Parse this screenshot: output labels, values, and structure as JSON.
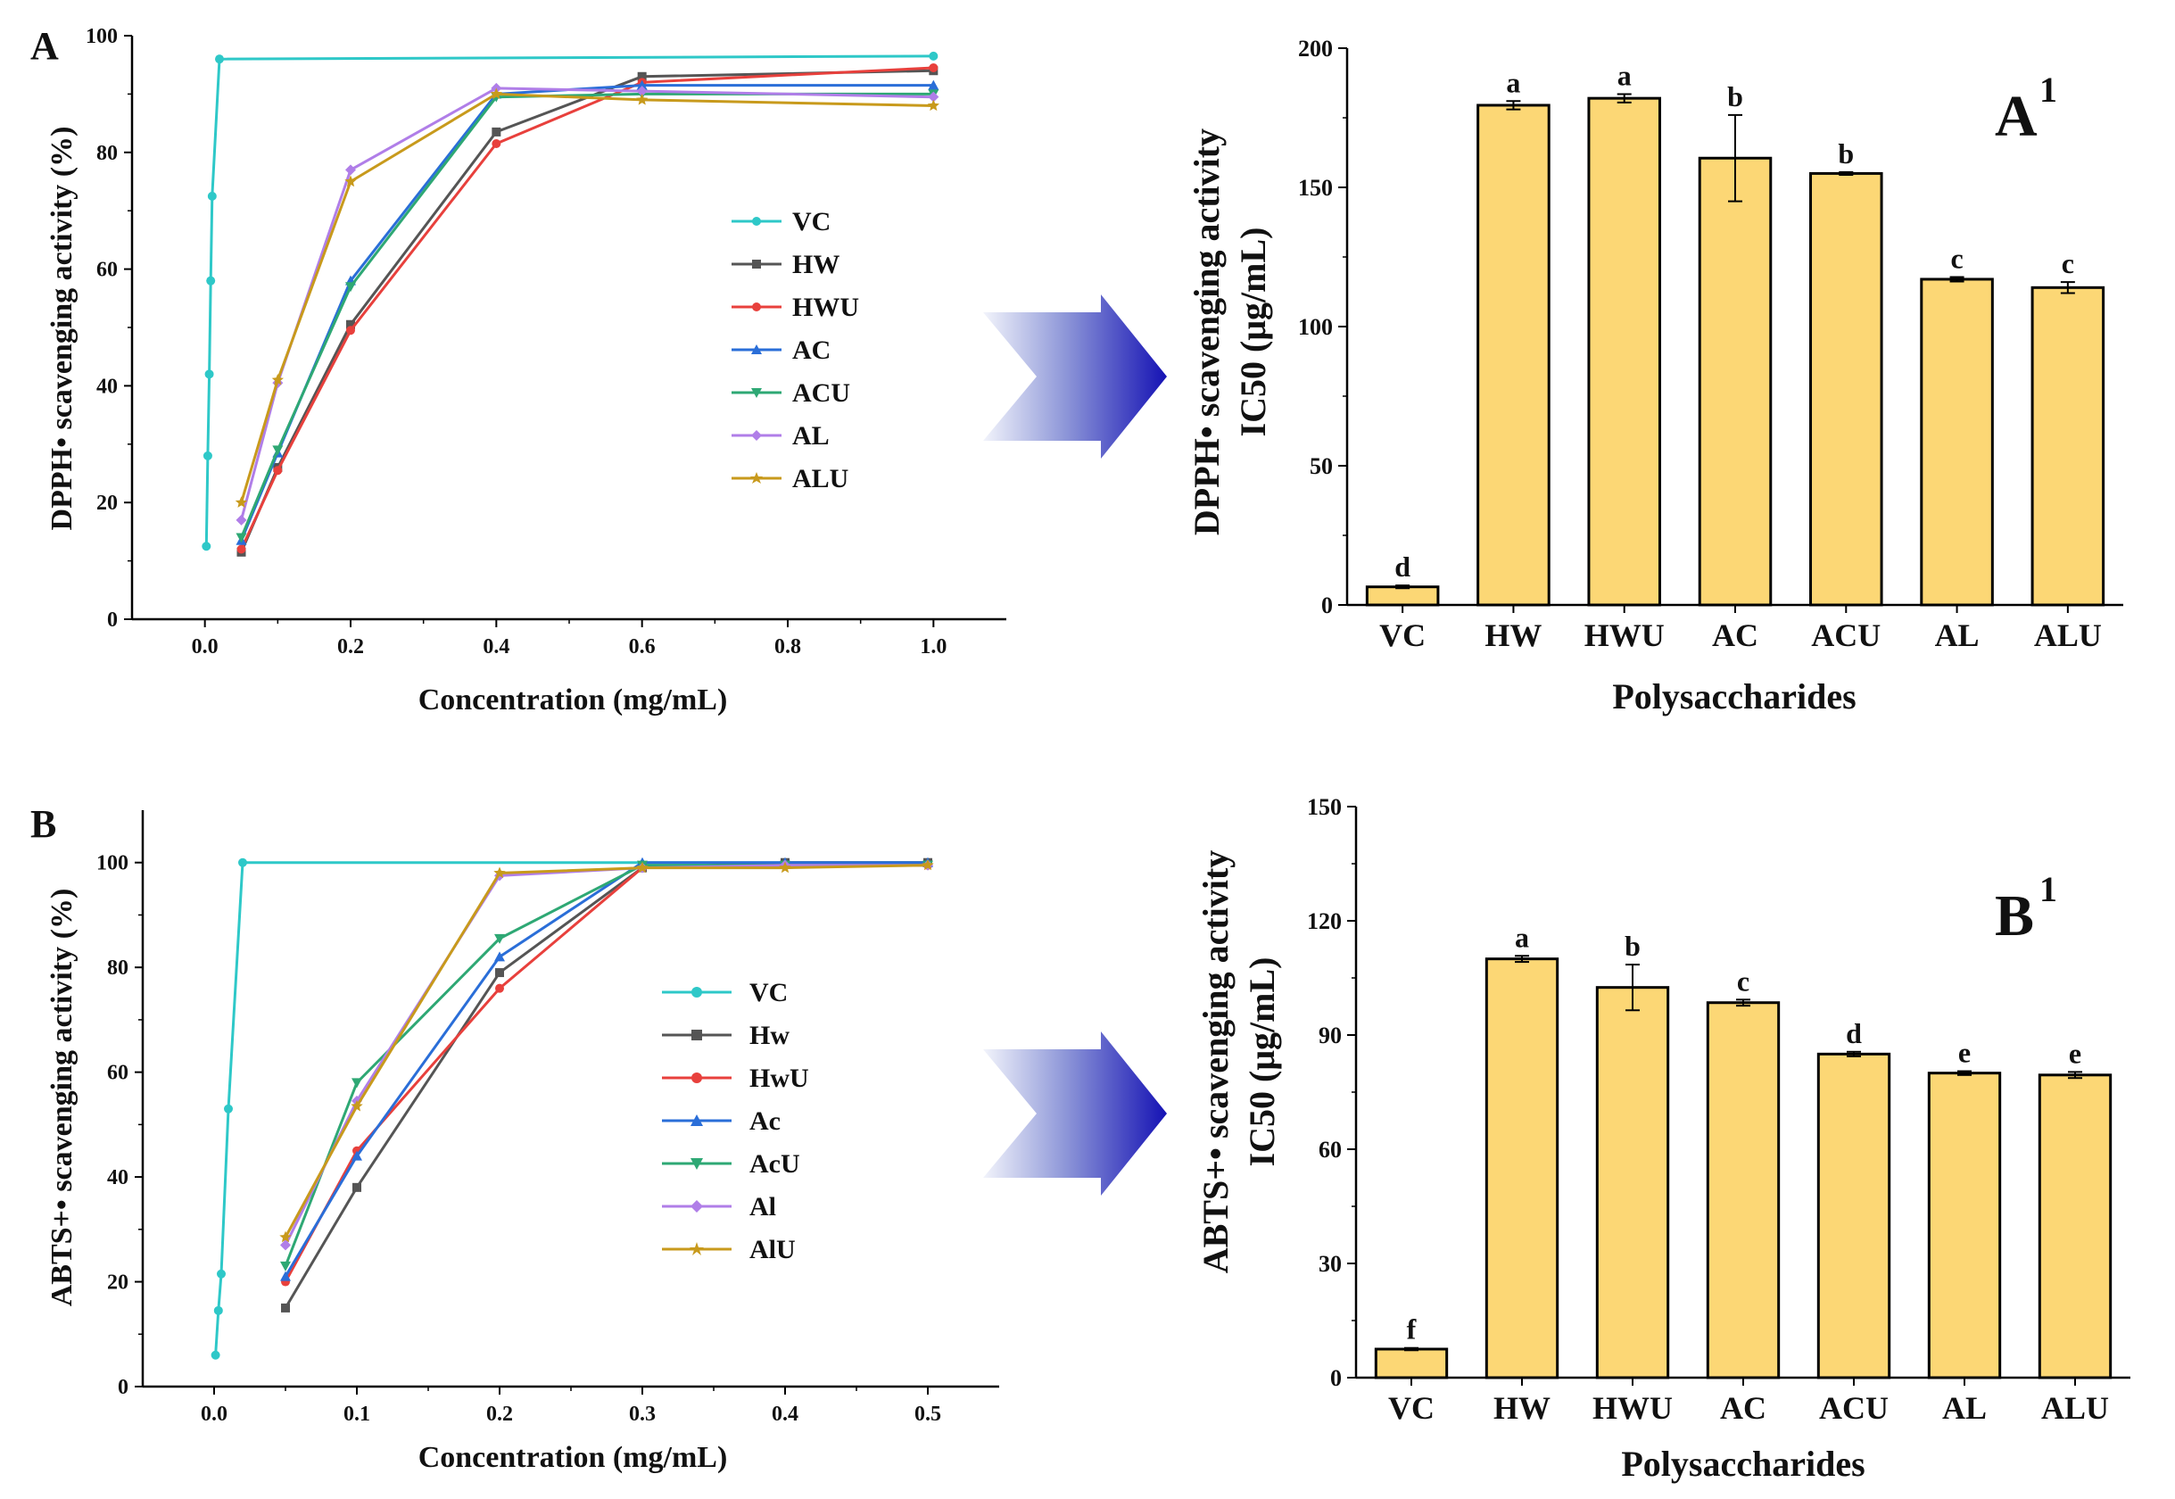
{
  "chart_data": [
    {
      "id": "A",
      "type": "line",
      "panel_label": "A",
      "title": "",
      "xlabel": "Concentration (mg/mL)",
      "ylabel": "DPPH• scavenging activity (%)",
      "xlim": [
        -0.1,
        1.1
      ],
      "ylim": [
        0,
        100
      ],
      "xticks": [
        0.0,
        0.2,
        0.4,
        0.6,
        0.8,
        1.0
      ],
      "xtick_labels": [
        "0.0",
        "0.2",
        "0.4",
        "0.6",
        "0.8",
        "1.0"
      ],
      "yticks": [
        0,
        20,
        40,
        60,
        80,
        100
      ],
      "ytick_labels": [
        "0",
        "20",
        "40",
        "60",
        "80",
        "100"
      ],
      "legend_position": "center-right",
      "series": [
        {
          "name": "VC",
          "color": "#2ec8c8",
          "marker": "circle",
          "x": [
            0.002,
            0.004,
            0.006,
            0.008,
            0.01,
            0.02,
            1.0
          ],
          "y": [
            12.5,
            28,
            42,
            58,
            72.5,
            96,
            96.5
          ]
        },
        {
          "name": "HW",
          "color": "#555555",
          "marker": "square",
          "x": [
            0.05,
            0.1,
            0.2,
            0.4,
            0.6,
            1.0
          ],
          "y": [
            11.5,
            26,
            50.5,
            83.5,
            93,
            94
          ]
        },
        {
          "name": "HWU",
          "color": "#e8403c",
          "marker": "circle",
          "x": [
            0.05,
            0.1,
            0.2,
            0.4,
            0.6,
            1.0
          ],
          "y": [
            12,
            25.5,
            49.5,
            81.5,
            92,
            94.5
          ]
        },
        {
          "name": "AC",
          "color": "#2a6ed8",
          "marker": "triangle-up",
          "x": [
            0.05,
            0.1,
            0.2,
            0.4,
            0.6,
            1.0
          ],
          "y": [
            13.5,
            28.5,
            58,
            90,
            91.5,
            91.5
          ]
        },
        {
          "name": "ACU",
          "color": "#2ea874",
          "marker": "triangle-down",
          "x": [
            0.05,
            0.1,
            0.2,
            0.4,
            0.6,
            1.0
          ],
          "y": [
            14,
            29,
            57,
            89.5,
            90,
            90
          ]
        },
        {
          "name": "AL",
          "color": "#b07ee8",
          "marker": "diamond",
          "x": [
            0.05,
            0.1,
            0.2,
            0.4,
            0.6,
            1.0
          ],
          "y": [
            17,
            40.5,
            77,
            91,
            90.5,
            89.5
          ]
        },
        {
          "name": "ALU",
          "color": "#c89a1c",
          "marker": "star",
          "x": [
            0.05,
            0.1,
            0.2,
            0.4,
            0.6,
            1.0
          ],
          "y": [
            20,
            41,
            75,
            90,
            89,
            88
          ]
        }
      ]
    },
    {
      "id": "A1",
      "type": "bar",
      "panel_label": "A",
      "panel_label_sup": "1",
      "title": "",
      "xlabel": "Polysaccharides",
      "ylabel_line1": "DPPH• scavenging activity",
      "ylabel_line2": "IC50 (μg/mL)",
      "ylim": [
        0,
        200
      ],
      "yticks": [
        0,
        50,
        100,
        150,
        200
      ],
      "ytick_labels": [
        "0",
        "50",
        "100",
        "150",
        "200"
      ],
      "bar_color": "#fcd775",
      "categories": [
        "VC",
        "HW",
        "HWU",
        "AC",
        "ACU",
        "AL",
        "ALU"
      ],
      "values": [
        6.5,
        179.5,
        182,
        160.5,
        155,
        117,
        114
      ],
      "errors": [
        0.5,
        1.5,
        1.5,
        15.5,
        0.5,
        0.8,
        2
      ],
      "sig_letters": [
        "d",
        "a",
        "a",
        "b",
        "b",
        "c",
        "c"
      ]
    },
    {
      "id": "B",
      "type": "line",
      "panel_label": "B",
      "title": "",
      "xlabel": "Concentration (mg/mL)",
      "ylabel": "ABTS+• scavenging activity (%)",
      "xlim": [
        -0.05,
        0.55
      ],
      "ylim": [
        0,
        110
      ],
      "xticks": [
        0.0,
        0.1,
        0.2,
        0.3,
        0.4,
        0.5
      ],
      "xtick_labels": [
        "0.0",
        "0.1",
        "0.2",
        "0.3",
        "0.4",
        "0.5"
      ],
      "yticks": [
        0,
        20,
        40,
        60,
        80,
        100
      ],
      "ytick_labels": [
        "0",
        "20",
        "40",
        "60",
        "80",
        "100"
      ],
      "legend_position": "center-right",
      "series": [
        {
          "name": "VC",
          "color": "#2ec8c8",
          "marker": "circle",
          "x": [
            0.001,
            0.003,
            0.005,
            0.01,
            0.02,
            0.5
          ],
          "y": [
            6,
            14.5,
            21.5,
            53,
            100,
            100
          ]
        },
        {
          "name": "Hw",
          "color": "#555555",
          "marker": "square",
          "x": [
            0.05,
            0.1,
            0.2,
            0.3,
            0.4,
            0.5
          ],
          "y": [
            15,
            38,
            79,
            99,
            100,
            100
          ]
        },
        {
          "name": "HwU",
          "color": "#e8403c",
          "marker": "circle",
          "x": [
            0.05,
            0.1,
            0.2,
            0.3,
            0.4,
            0.5
          ],
          "y": [
            20,
            45,
            76,
            99,
            99.5,
            99.5
          ]
        },
        {
          "name": "Ac",
          "color": "#2a6ed8",
          "marker": "triangle-up",
          "x": [
            0.05,
            0.1,
            0.2,
            0.3,
            0.4,
            0.5
          ],
          "y": [
            21,
            44,
            82,
            100,
            100,
            100
          ]
        },
        {
          "name": "AcU",
          "color": "#2ea874",
          "marker": "triangle-down",
          "x": [
            0.05,
            0.1,
            0.2,
            0.3,
            0.4,
            0.5
          ],
          "y": [
            23,
            58,
            85.5,
            99.5,
            99.5,
            99.5
          ]
        },
        {
          "name": "Al",
          "color": "#b07ee8",
          "marker": "diamond",
          "x": [
            0.05,
            0.1,
            0.2,
            0.3,
            0.4,
            0.5
          ],
          "y": [
            27,
            54.5,
            97.5,
            99,
            99.5,
            99.5
          ]
        },
        {
          "name": "AlU",
          "color": "#c89a1c",
          "marker": "star",
          "x": [
            0.05,
            0.1,
            0.2,
            0.3,
            0.4,
            0.5
          ],
          "y": [
            28.5,
            53.5,
            98,
            99,
            99,
            99.5
          ]
        }
      ]
    },
    {
      "id": "B1",
      "type": "bar",
      "panel_label": "B",
      "panel_label_sup": "1",
      "title": "",
      "xlabel": "Polysaccharides",
      "ylabel_line1": "ABTS+• scavenging activity",
      "ylabel_line2": "IC50 (μg/mL)",
      "ylim": [
        0,
        150
      ],
      "yticks": [
        0,
        30,
        60,
        90,
        120,
        150
      ],
      "ytick_labels": [
        "0",
        "30",
        "60",
        "90",
        "120",
        "150"
      ],
      "bar_color": "#fcd775",
      "categories": [
        "VC",
        "HW",
        "HWU",
        "AC",
        "ACU",
        "AL",
        "ALU"
      ],
      "values": [
        7.5,
        110,
        102.5,
        98.5,
        85,
        80,
        79.5
      ],
      "errors": [
        0.3,
        0.8,
        6,
        0.8,
        0.6,
        0.5,
        0.8
      ],
      "sig_letters": [
        "f",
        "a",
        "b",
        "c",
        "d",
        "e",
        "e"
      ]
    }
  ]
}
